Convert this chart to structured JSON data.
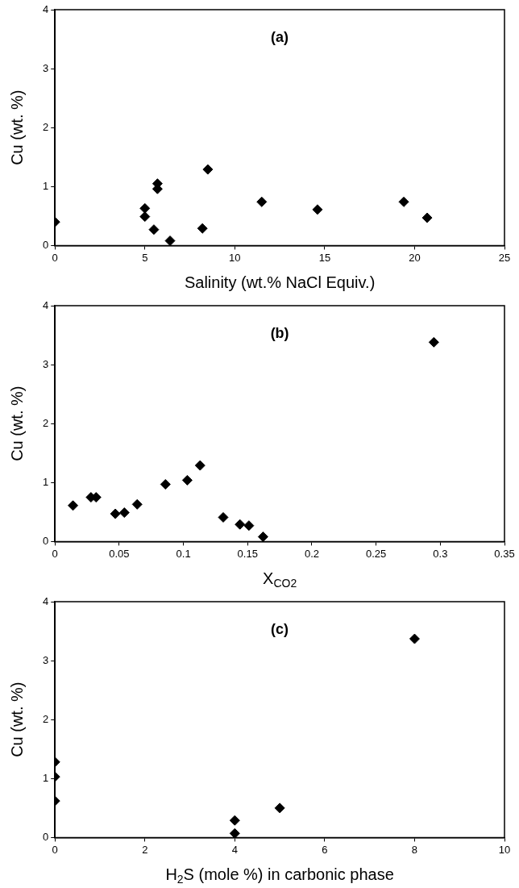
{
  "chart_data": [
    {
      "type": "scatter",
      "title": "(a)",
      "xlabel": "Salinity (wt.% NaCl Equiv.)",
      "ylabel": "Cu (wt. %)",
      "xlim": [
        0,
        25
      ],
      "xticks": [
        0,
        5,
        10,
        15,
        20,
        25
      ],
      "ylim": [
        0,
        4
      ],
      "yticks": [
        0,
        1,
        2,
        3,
        4
      ],
      "grid": false,
      "legend": false,
      "marker": "diamond",
      "series": [
        {
          "color": "#000000",
          "x": [
            0,
            5.0,
            5.0,
            5.5,
            5.7,
            5.7,
            6.4,
            8.2,
            8.5,
            11.5,
            14.6,
            19.4,
            20.7
          ],
          "values": [
            0.4,
            0.63,
            0.49,
            0.27,
            1.05,
            0.96,
            0.08,
            0.29,
            1.29,
            0.74,
            0.61,
            0.74,
            0.47
          ]
        }
      ]
    },
    {
      "type": "scatter",
      "title": "(b)",
      "xlabel": "X$_{CO2}$",
      "ylabel": "Cu (wt. %)",
      "xlim": [
        0,
        0.35
      ],
      "xticks": [
        0,
        0.05,
        0.1,
        0.15,
        0.2,
        0.25,
        0.3,
        0.35
      ],
      "ylim": [
        0,
        4
      ],
      "yticks": [
        0,
        1,
        2,
        3,
        4
      ],
      "grid": false,
      "legend": false,
      "marker": "diamond",
      "series": [
        {
          "color": "#000000",
          "x": [
            0.014,
            0.028,
            0.032,
            0.047,
            0.054,
            0.064,
            0.086,
            0.103,
            0.113,
            0.131,
            0.144,
            0.151,
            0.162,
            0.295
          ],
          "values": [
            0.61,
            0.75,
            0.75,
            0.47,
            0.49,
            0.63,
            0.97,
            1.04,
            1.29,
            0.41,
            0.29,
            0.27,
            0.08,
            3.38
          ]
        }
      ]
    },
    {
      "type": "scatter",
      "title": "(c)",
      "xlabel": "H$_{2}$S (mole %) in carbonic phase",
      "ylabel": "Cu (wt. %)",
      "xlim": [
        0,
        10
      ],
      "xticks": [
        0,
        2,
        4,
        6,
        8,
        10
      ],
      "ylim": [
        0,
        4
      ],
      "yticks": [
        0,
        1,
        2,
        3,
        4
      ],
      "grid": false,
      "legend": false,
      "marker": "diamond",
      "series": [
        {
          "color": "#000000",
          "x": [
            0,
            0,
            0,
            4,
            4,
            5,
            8
          ],
          "values": [
            1.28,
            1.03,
            0.62,
            0.29,
            0.07,
            0.5,
            3.37
          ]
        }
      ]
    }
  ]
}
